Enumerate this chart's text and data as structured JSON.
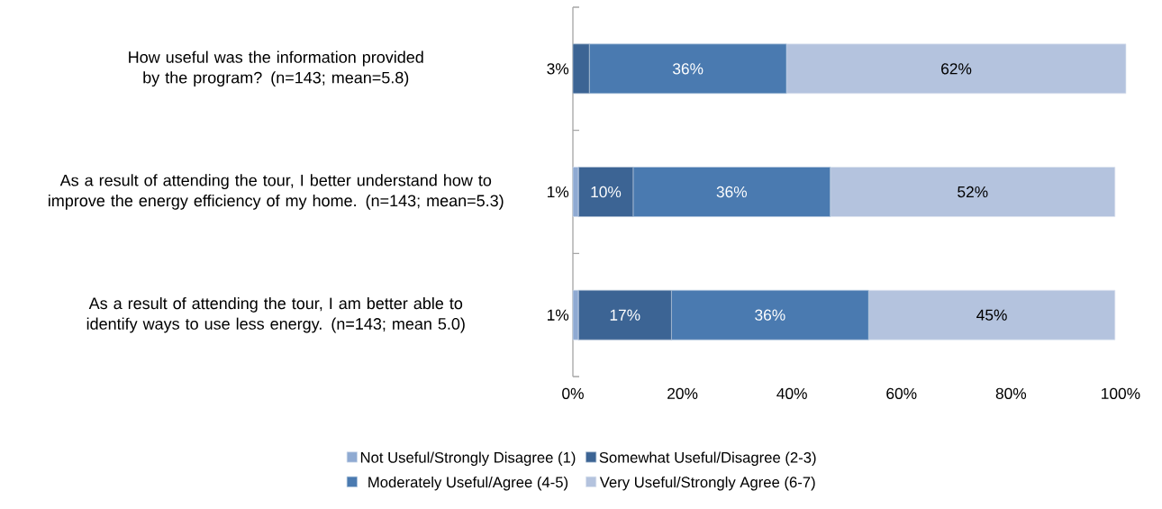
{
  "chart_data": {
    "type": "bar",
    "orientation": "horizontal",
    "stacked": true,
    "legend": "bottom",
    "categories": [
      "How useful was the information provided by the program? (n=143; mean=5.8)",
      "As a result of attending the tour, I better understand how to improve the energy efficiency of my home. (n=143; mean=5.3)",
      "As a result of attending the tour, I am better able to identify ways to use less energy. (n=143; mean 5.0)"
    ],
    "xlim": [
      0,
      101
    ],
    "xticks": [
      {
        "value": 0,
        "label": "0%"
      },
      {
        "value": 20,
        "label": "20%"
      },
      {
        "value": 40,
        "label": "40%"
      },
      {
        "value": 60,
        "label": "60%"
      },
      {
        "value": 80,
        "label": "80%"
      },
      {
        "value": 100,
        "label": "100%"
      }
    ],
    "series": [
      {
        "name": "Not Useful/Strongly Disagree (1)",
        "color": "#8faad2",
        "values": [
          0,
          1,
          1
        ],
        "value_labels": [
          null,
          "1%",
          "1%"
        ]
      },
      {
        "name": "Somewhat Useful/Disagree (2-3)",
        "color": "#3c6494",
        "values": [
          3,
          10,
          17
        ],
        "value_labels": [
          "3%",
          "10%",
          "17%"
        ]
      },
      {
        "name": "Moderately Useful/Agree (4-5)",
        "color": "#4a7ab0",
        "values": [
          36,
          36,
          36
        ],
        "value_labels": [
          "36%",
          "36%",
          "36%"
        ]
      },
      {
        "name": "Very Useful/Strongly Agree (6-7)",
        "color": "#b4c3de",
        "values": [
          62,
          52,
          45
        ],
        "value_labels": [
          "62%",
          "52%",
          "45%"
        ]
      }
    ]
  }
}
